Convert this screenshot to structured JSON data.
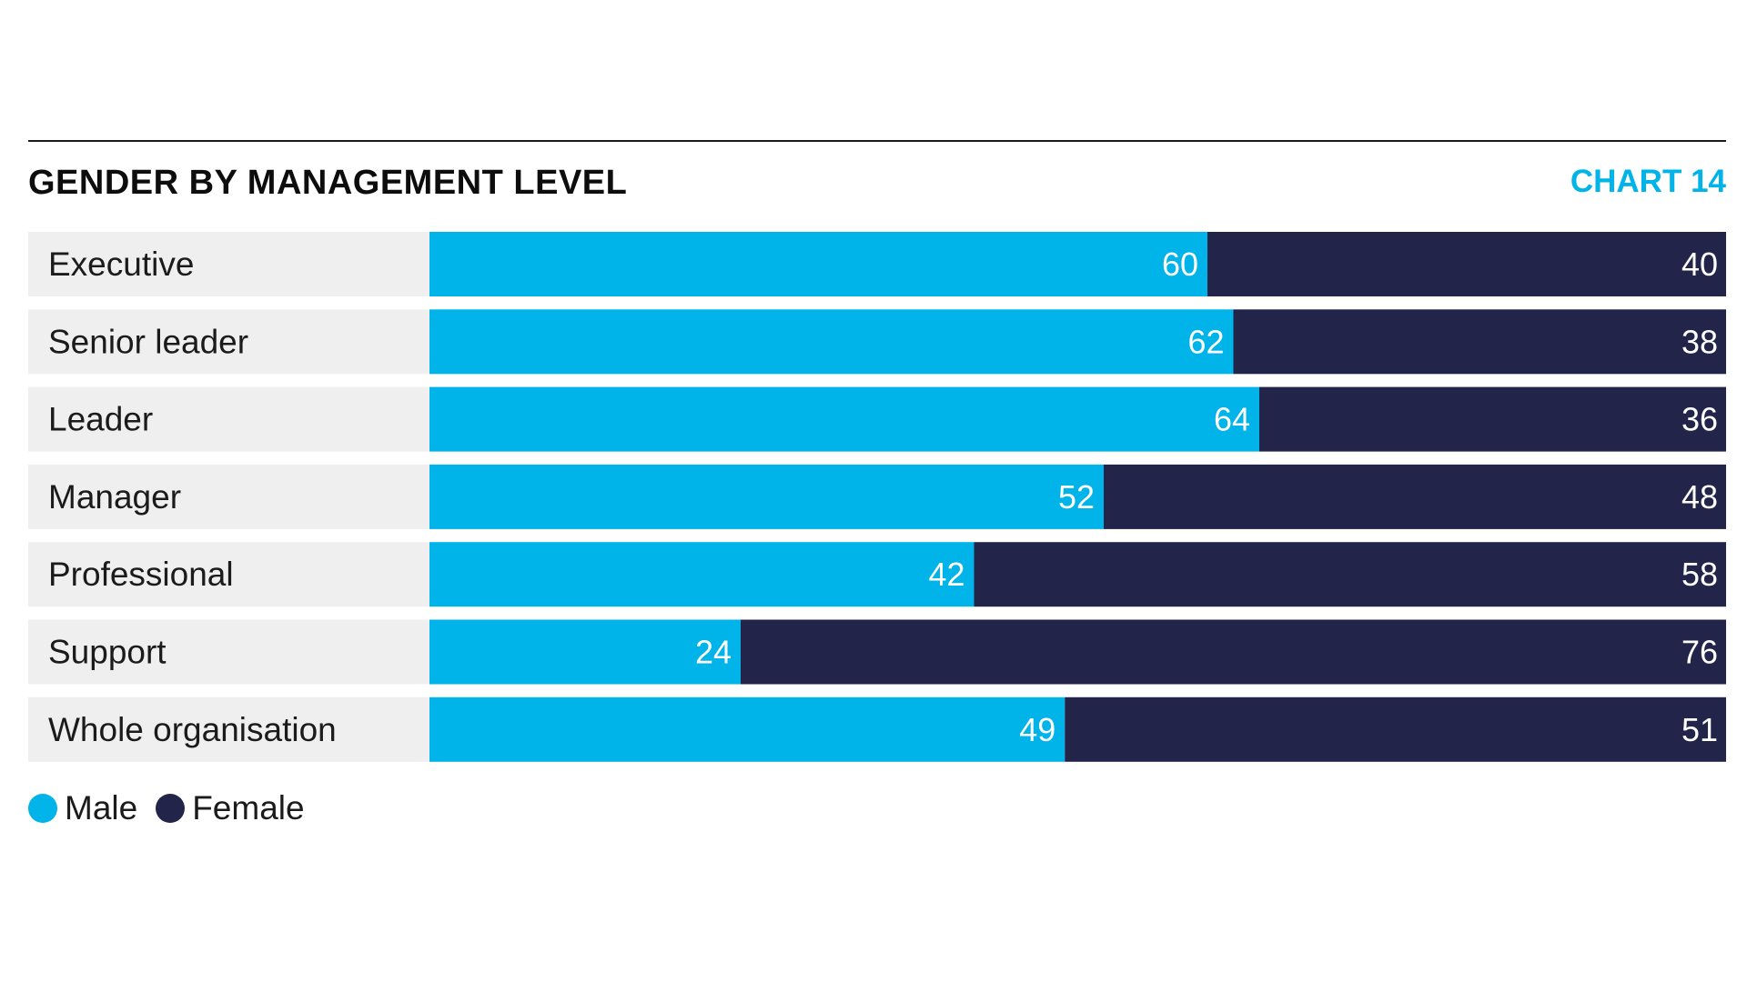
{
  "header": {
    "title": "GENDER BY MANAGEMENT LEVEL",
    "chart_number": "CHART 14"
  },
  "colors": {
    "male": "#00b3e8",
    "female": "#22244a",
    "label_bg": "#efefef",
    "text_dark": "#1b1b1b",
    "accent": "#00b3e8"
  },
  "legend": {
    "male_label": "Male",
    "female_label": "Female"
  },
  "chart_data": {
    "type": "bar",
    "orientation": "horizontal",
    "stacked": true,
    "title": "GENDER BY MANAGEMENT LEVEL",
    "xlabel": "",
    "ylabel": "",
    "xlim": [
      0,
      100
    ],
    "grid": false,
    "legend_position": "bottom-left",
    "categories": [
      "Executive",
      "Senior leader",
      "Leader",
      "Manager",
      "Professional",
      "Support",
      "Whole organisation"
    ],
    "series": [
      {
        "name": "Male",
        "values": [
          60,
          62,
          64,
          52,
          42,
          24,
          49
        ]
      },
      {
        "name": "Female",
        "values": [
          40,
          38,
          36,
          48,
          58,
          76,
          51
        ]
      }
    ]
  }
}
